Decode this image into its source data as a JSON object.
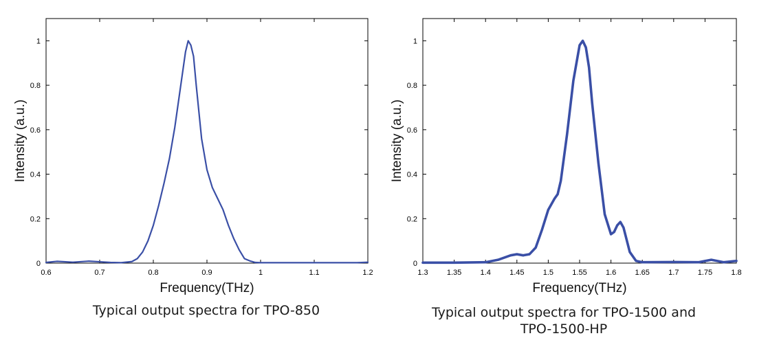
{
  "colors": {
    "line": "#3a4fa6",
    "axis": "#000000",
    "text": "#1a1a1a"
  },
  "captions": {
    "left": "Typical output spectra for TPO-850",
    "right_line1": "Typical output spectra for TPO-1500 and",
    "right_line2": "TPO-1500-HP"
  },
  "chart_data": [
    {
      "type": "line",
      "xlabel": "Frequency(THz)",
      "ylabel": "Intensity (a.u.)",
      "xlim": [
        0.6,
        1.2
      ],
      "ylim": [
        0,
        1.1
      ],
      "xticks": [
        "0.6",
        "0.7",
        "0.8",
        "0.9",
        "1",
        "1.1",
        "1.2"
      ],
      "yticks": [
        "0",
        "0.2",
        "0.4",
        "0.6",
        "0.8",
        "1"
      ],
      "grid": false,
      "series": [
        {
          "x": [
            0.6,
            0.62,
            0.65,
            0.68,
            0.7,
            0.72,
            0.74,
            0.76,
            0.77,
            0.78,
            0.79,
            0.8,
            0.81,
            0.82,
            0.83,
            0.84,
            0.85,
            0.86,
            0.865,
            0.87,
            0.875,
            0.88,
            0.89,
            0.9,
            0.91,
            0.92,
            0.93,
            0.94,
            0.95,
            0.96,
            0.97,
            0.98,
            0.99,
            1.0,
            1.05,
            1.1,
            1.15,
            1.18,
            1.2
          ],
          "y": [
            0.003,
            0.008,
            0.004,
            0.009,
            0.006,
            0.003,
            0.002,
            0.007,
            0.02,
            0.05,
            0.1,
            0.17,
            0.26,
            0.36,
            0.47,
            0.61,
            0.78,
            0.95,
            1.0,
            0.98,
            0.93,
            0.8,
            0.56,
            0.42,
            0.34,
            0.29,
            0.24,
            0.17,
            0.11,
            0.06,
            0.02,
            0.01,
            0.003,
            0.002,
            0.002,
            0.002,
            0.002,
            0.002,
            0.004
          ]
        }
      ]
    },
    {
      "type": "line",
      "xlabel": "Frequency(THz)",
      "ylabel": "Intensity (a.u.)",
      "xlim": [
        1.3,
        1.8
      ],
      "ylim": [
        0,
        1.1
      ],
      "xticks": [
        "1.3",
        "1.35",
        "1.4",
        "1.45",
        "1.5",
        "1.55",
        "1.6",
        "1.65",
        "1.7",
        "1.75",
        "1.8"
      ],
      "yticks": [
        "0",
        "0.2",
        "0.4",
        "0.6",
        "0.8",
        "1"
      ],
      "grid": false,
      "series": [
        {
          "x": [
            1.3,
            1.35,
            1.4,
            1.42,
            1.44,
            1.45,
            1.46,
            1.47,
            1.48,
            1.49,
            1.5,
            1.51,
            1.515,
            1.52,
            1.53,
            1.54,
            1.55,
            1.555,
            1.56,
            1.565,
            1.57,
            1.58,
            1.59,
            1.6,
            1.605,
            1.61,
            1.615,
            1.62,
            1.63,
            1.64,
            1.65,
            1.7,
            1.74,
            1.76,
            1.78,
            1.8
          ],
          "y": [
            0.002,
            0.002,
            0.004,
            0.015,
            0.035,
            0.04,
            0.035,
            0.04,
            0.07,
            0.15,
            0.24,
            0.29,
            0.31,
            0.37,
            0.58,
            0.82,
            0.98,
            1.0,
            0.97,
            0.88,
            0.72,
            0.45,
            0.22,
            0.13,
            0.14,
            0.17,
            0.185,
            0.16,
            0.05,
            0.01,
            0.004,
            0.005,
            0.004,
            0.015,
            0.004,
            0.01
          ]
        }
      ]
    }
  ]
}
